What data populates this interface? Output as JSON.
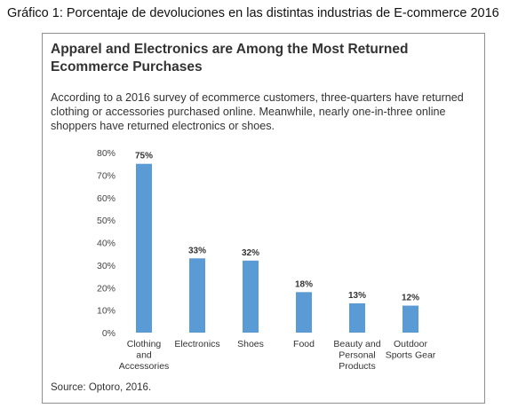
{
  "caption": "Gráfico 1: Porcentaje de devoluciones en las distintas industrias de E-commerce 2016",
  "chart_data": {
    "type": "bar",
    "title": "Apparel and Electronics are Among the Most Returned Ecommerce Purchases",
    "subtitle": "According to a 2016 survey of ecommerce customers, three-quarters have returned clothing or accessories purchased online. Meanwhile, nearly one-in-three online shoppers have returned electronics or shoes.",
    "categories": [
      [
        "Clothing",
        "and",
        "Accessories"
      ],
      [
        "Electronics"
      ],
      [
        "Shoes"
      ],
      [
        "Food"
      ],
      [
        "Beauty and",
        "Personal",
        "Products"
      ],
      [
        "Outdoor",
        "Sports Gear"
      ]
    ],
    "values": [
      75,
      33,
      32,
      18,
      13,
      12
    ],
    "data_labels": [
      "75%",
      "33%",
      "32%",
      "18%",
      "13%",
      "12%"
    ],
    "y_ticks": [
      "0%",
      "10%",
      "20%",
      "30%",
      "40%",
      "50%",
      "60%",
      "70%",
      "80%"
    ],
    "ylim": [
      0,
      80
    ],
    "xlabel": "",
    "ylabel": "",
    "grid": false,
    "bar_color": "#5b9bd5",
    "source": "Source: Optoro, 2016."
  }
}
